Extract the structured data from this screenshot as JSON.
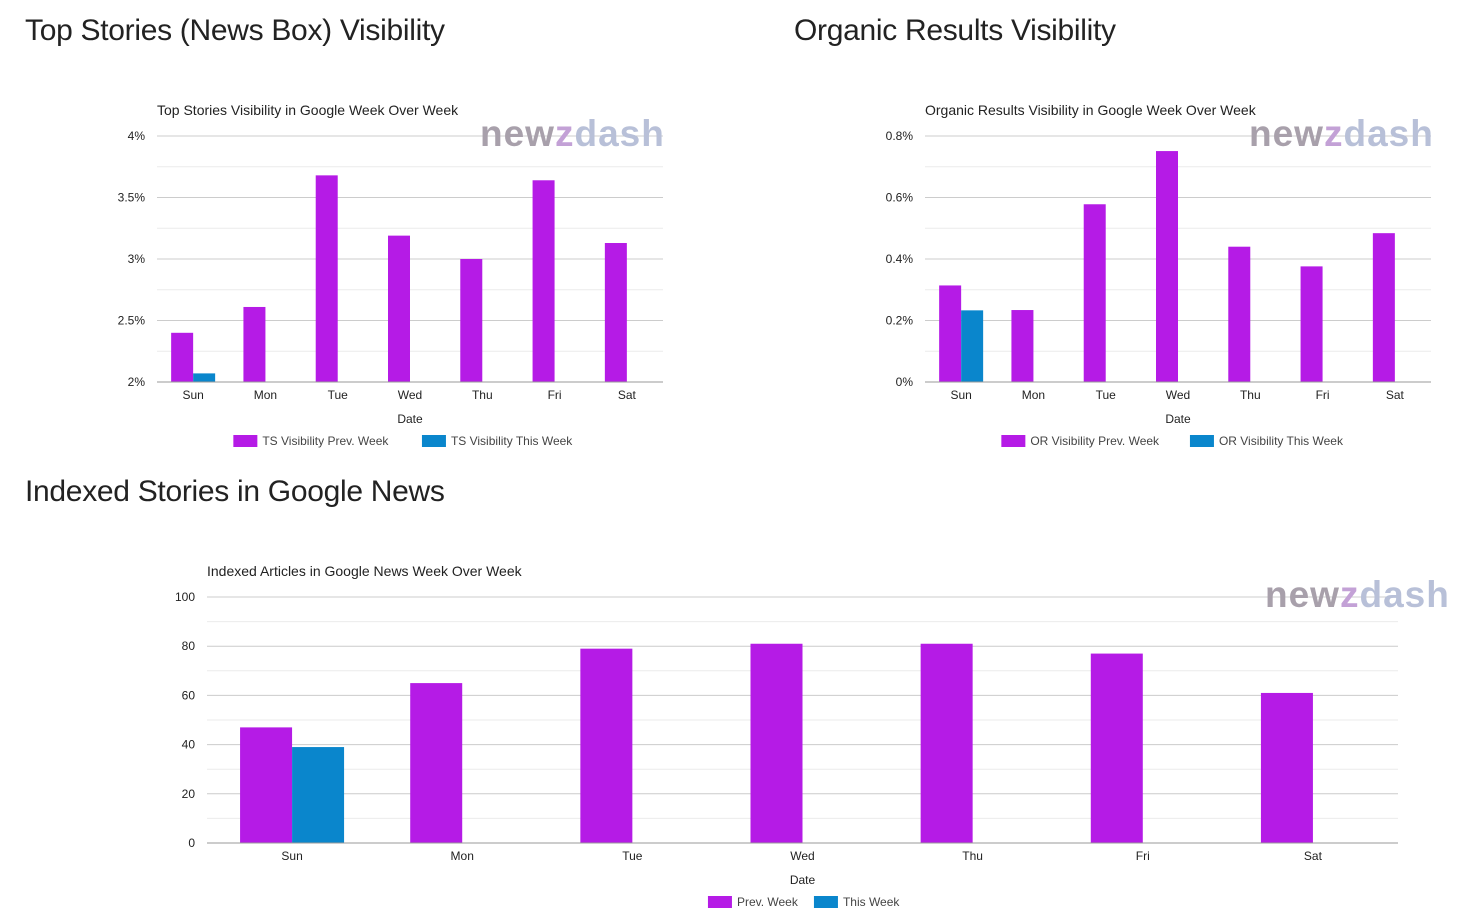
{
  "sections": {
    "top_stories": "Top Stories (News Box) Visibility",
    "organic": "Organic Results Visibility",
    "indexed": "Indexed Stories in Google News"
  },
  "watermark": {
    "parts": [
      "new",
      "z",
      "dash"
    ],
    "colors": [
      "#a8a0ab",
      "#c3a1d6",
      "#b8c0d8"
    ]
  },
  "colors": {
    "prev": "#b51be6",
    "this": "#0a86cc"
  },
  "chart_data": [
    {
      "id": "ts",
      "type": "bar",
      "title": "Top Stories Visibility in Google Week Over Week",
      "xlabel": "Date",
      "ylabel": "",
      "ylim": [
        2,
        4
      ],
      "yticks": [
        2,
        2.5,
        3,
        3.5,
        4
      ],
      "ytick_labels": [
        "2%",
        "2.5%",
        "3%",
        "3.5%",
        "4%"
      ],
      "grid": true,
      "legend_position": "bottom",
      "categories": [
        "Sun",
        "Mon",
        "Tue",
        "Wed",
        "Thu",
        "Fri",
        "Sat"
      ],
      "series": [
        {
          "name": "TS Visibility Prev. Week",
          "values": [
            2.4,
            2.61,
            3.68,
            3.19,
            3.0,
            3.64,
            3.13
          ]
        },
        {
          "name": "TS Visibility This Week",
          "values": [
            2.07,
            null,
            null,
            null,
            null,
            null,
            null
          ]
        }
      ]
    },
    {
      "id": "or",
      "type": "bar",
      "title": "Organic Results Visibility in Google Week Over Week",
      "xlabel": "Date",
      "ylabel": "",
      "ylim": [
        0,
        0.8
      ],
      "yticks": [
        0,
        0.2,
        0.4,
        0.6,
        0.8
      ],
      "ytick_labels": [
        "0%",
        "0.2%",
        "0.4%",
        "0.6%",
        "0.8%"
      ],
      "grid": true,
      "legend_position": "bottom",
      "categories": [
        "Sun",
        "Mon",
        "Tue",
        "Wed",
        "Thu",
        "Fri",
        "Sat"
      ],
      "series": [
        {
          "name": "OR Visibility Prev. Week",
          "values": [
            0.314,
            0.234,
            0.578,
            0.751,
            0.44,
            0.376,
            0.484
          ]
        },
        {
          "name": "OR Visibility This Week",
          "values": [
            0.233,
            null,
            null,
            null,
            null,
            null,
            null
          ]
        }
      ]
    },
    {
      "id": "idx",
      "type": "bar",
      "title": "Indexed Articles in Google News Week Over Week",
      "xlabel": "Date",
      "ylabel": "",
      "ylim": [
        0,
        100
      ],
      "yticks": [
        0,
        20,
        40,
        60,
        80,
        100
      ],
      "ytick_labels": [
        "0",
        "20",
        "40",
        "60",
        "80",
        "100"
      ],
      "grid": true,
      "legend_position": "bottom",
      "categories": [
        "Sun",
        "Mon",
        "Tue",
        "Wed",
        "Thu",
        "Fri",
        "Sat"
      ],
      "series": [
        {
          "name": "Prev. Week",
          "values": [
            47,
            65,
            79,
            81,
            81,
            77,
            61
          ]
        },
        {
          "name": "This Week",
          "values": [
            39,
            null,
            null,
            null,
            null,
            null,
            null
          ]
        }
      ]
    }
  ]
}
